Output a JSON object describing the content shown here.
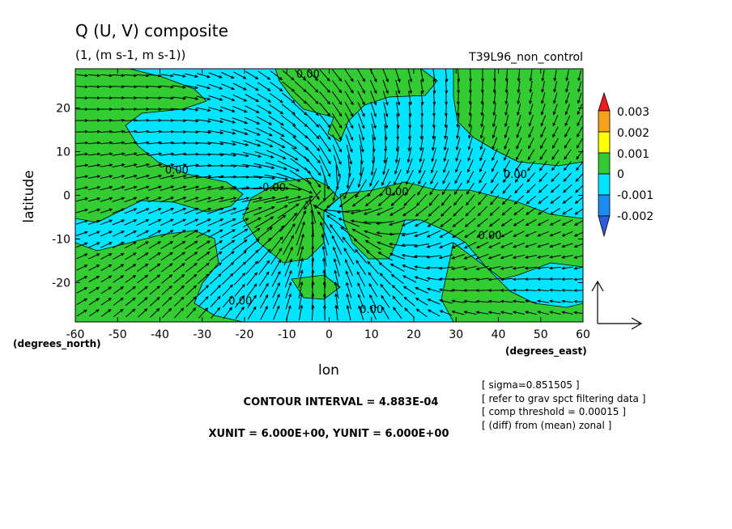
{
  "chart_data": {
    "type": "heatmap",
    "title": "Q (U, V) composite",
    "subtitle": "(1, (m s-1, m s-1))",
    "run_label": "T39L96_non_control",
    "xlabel": "lon",
    "ylabel": "latitude",
    "x_unit_label": "(degrees_east)",
    "y_unit_label": "(degrees_north)",
    "xlim": [
      -60,
      60
    ],
    "ylim": [
      -29,
      29
    ],
    "x_ticks": [
      -60,
      -50,
      -40,
      -30,
      -20,
      -10,
      0,
      10,
      20,
      30,
      40,
      50,
      60
    ],
    "y_ticks": [
      -20,
      -10,
      0,
      10,
      20
    ],
    "x_tick_labels": [
      "-60",
      "-50",
      "-40",
      "-30",
      "-20",
      "-10",
      "0",
      "10",
      "20",
      "30",
      "40",
      "50",
      "60"
    ],
    "y_tick_labels": [
      "-20",
      "-10",
      "0",
      "10",
      "20"
    ],
    "contour_labels": [
      {
        "text": "0.00",
        "x": -5,
        "y": 27
      },
      {
        "text": "0.00",
        "x": -36,
        "y": 5
      },
      {
        "text": "0.00",
        "x": -13,
        "y": 1
      },
      {
        "text": "0.00",
        "x": 16,
        "y": 0
      },
      {
        "text": "0.00",
        "x": 44,
        "y": 4
      },
      {
        "text": "0.00",
        "x": 38,
        "y": -10
      },
      {
        "text": "0.00",
        "x": -21,
        "y": -25
      },
      {
        "text": "0.00",
        "x": 10,
        "y": -27
      }
    ],
    "colorbar": {
      "labels": [
        "0.003",
        "0.002",
        "0.001",
        "0",
        "-0.001",
        "-0.002"
      ],
      "colors": [
        "#ee1c1c",
        "#f7a21c",
        "#ffff00",
        "#33cc33",
        "#00e5ff",
        "#1c8cf0",
        "#2c5cdc"
      ]
    },
    "fill_colors": {
      "positive": "#33cc33",
      "negative": "#00e5ff"
    },
    "vector_reference": "arrows",
    "notes": [
      "CONTOUR INTERVAL = 4.883E-04",
      "XUNIT = 6.000E+00, YUNIT = 6.000E+00"
    ],
    "info_lines": [
      "[ sigma=0.851505 ]",
      "[ refer to grav spct filtering data ]",
      "[ comp threshold = 0.00015 ]",
      "[ (diff) from (mean) zonal ]"
    ]
  }
}
